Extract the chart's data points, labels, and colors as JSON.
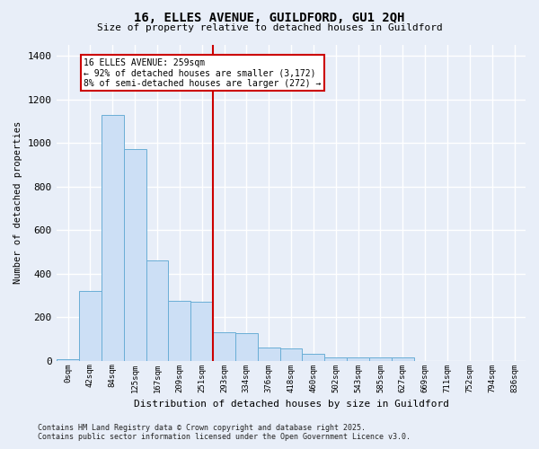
{
  "title1": "16, ELLES AVENUE, GUILDFORD, GU1 2QH",
  "title2": "Size of property relative to detached houses in Guildford",
  "xlabel": "Distribution of detached houses by size in Guildford",
  "ylabel": "Number of detached properties",
  "bar_values": [
    5,
    320,
    1130,
    970,
    460,
    275,
    270,
    130,
    125,
    60,
    55,
    30,
    15,
    15,
    15,
    15,
    0,
    0,
    0,
    0,
    0
  ],
  "x_labels": [
    "0sqm",
    "42sqm",
    "84sqm",
    "125sqm",
    "167sqm",
    "209sqm",
    "251sqm",
    "293sqm",
    "334sqm",
    "376sqm",
    "418sqm",
    "460sqm",
    "502sqm",
    "543sqm",
    "585sqm",
    "627sqm",
    "669sqm",
    "711sqm",
    "752sqm",
    "794sqm",
    "836sqm"
  ],
  "bar_color": "#ccdff5",
  "bar_edge_color": "#6aaed6",
  "ylim": [
    0,
    1450
  ],
  "annotation_text": "16 ELLES AVENUE: 259sqm\n← 92% of detached houses are smaller (3,172)\n8% of semi-detached houses are larger (272) →",
  "vline_x_index": 6,
  "vline_color": "#cc0000",
  "annotation_box_color": "#cc0000",
  "background_color": "#e8eef8",
  "footer1": "Contains HM Land Registry data © Crown copyright and database right 2025.",
  "footer2": "Contains public sector information licensed under the Open Government Licence v3.0.",
  "yticks": [
    0,
    200,
    400,
    600,
    800,
    1000,
    1200,
    1400
  ]
}
